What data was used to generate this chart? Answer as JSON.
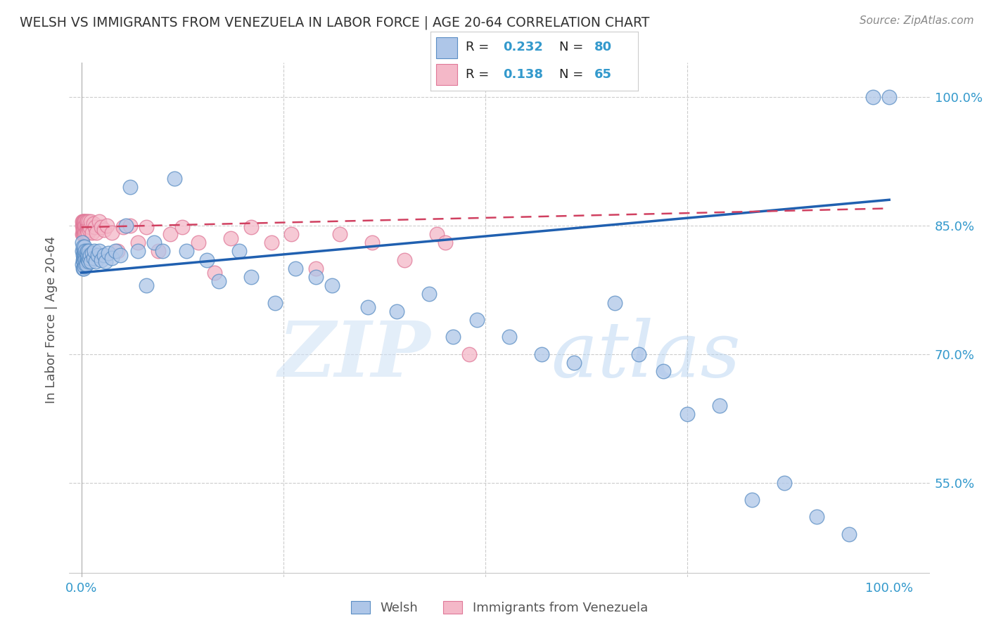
{
  "title": "WELSH VS IMMIGRANTS FROM VENEZUELA IN LABOR FORCE | AGE 20-64 CORRELATION CHART",
  "source": "Source: ZipAtlas.com",
  "ylabel": "In Labor Force | Age 20-64",
  "watermark": "ZIPatlas",
  "legend_blue_label": "Welsh",
  "legend_pink_label": "Immigrants from Venezuela",
  "blue_color": "#aec6e8",
  "pink_color": "#f4b8c8",
  "blue_edge_color": "#5b8ec4",
  "pink_edge_color": "#e07898",
  "blue_line_color": "#2060b0",
  "pink_line_color": "#d04060",
  "title_color": "#333333",
  "axis_label_color": "#555555",
  "tick_color": "#3399cc",
  "grid_color": "#cccccc",
  "background_color": "#ffffff",
  "blue_scatter_x": [
    0.001,
    0.001,
    0.001,
    0.002,
    0.002,
    0.002,
    0.002,
    0.003,
    0.003,
    0.003,
    0.003,
    0.003,
    0.004,
    0.004,
    0.004,
    0.004,
    0.005,
    0.005,
    0.005,
    0.005,
    0.006,
    0.006,
    0.006,
    0.007,
    0.007,
    0.008,
    0.008,
    0.009,
    0.009,
    0.01,
    0.011,
    0.012,
    0.013,
    0.015,
    0.016,
    0.018,
    0.02,
    0.022,
    0.025,
    0.028,
    0.03,
    0.033,
    0.038,
    0.042,
    0.048,
    0.055,
    0.06,
    0.07,
    0.08,
    0.09,
    0.1,
    0.115,
    0.13,
    0.155,
    0.17,
    0.195,
    0.21,
    0.24,
    0.265,
    0.29,
    0.31,
    0.355,
    0.39,
    0.43,
    0.46,
    0.49,
    0.53,
    0.57,
    0.61,
    0.66,
    0.69,
    0.72,
    0.75,
    0.79,
    0.83,
    0.87,
    0.91,
    0.95,
    0.98,
    1.0
  ],
  "blue_scatter_y": [
    0.82,
    0.83,
    0.805,
    0.815,
    0.8,
    0.81,
    0.825,
    0.81,
    0.8,
    0.82,
    0.815,
    0.808,
    0.812,
    0.802,
    0.818,
    0.825,
    0.805,
    0.815,
    0.81,
    0.82,
    0.808,
    0.818,
    0.805,
    0.812,
    0.82,
    0.81,
    0.815,
    0.808,
    0.82,
    0.812,
    0.815,
    0.808,
    0.818,
    0.812,
    0.82,
    0.808,
    0.815,
    0.82,
    0.81,
    0.815,
    0.808,
    0.818,
    0.812,
    0.82,
    0.815,
    0.85,
    0.895,
    0.82,
    0.78,
    0.83,
    0.82,
    0.905,
    0.82,
    0.81,
    0.785,
    0.82,
    0.79,
    0.76,
    0.8,
    0.79,
    0.78,
    0.755,
    0.75,
    0.77,
    0.72,
    0.74,
    0.72,
    0.7,
    0.69,
    0.76,
    0.7,
    0.68,
    0.63,
    0.64,
    0.53,
    0.55,
    0.51,
    0.49,
    1.0,
    1.0
  ],
  "pink_scatter_x": [
    0.001,
    0.001,
    0.001,
    0.002,
    0.002,
    0.002,
    0.002,
    0.002,
    0.003,
    0.003,
    0.003,
    0.003,
    0.003,
    0.004,
    0.004,
    0.004,
    0.004,
    0.004,
    0.005,
    0.005,
    0.005,
    0.005,
    0.006,
    0.006,
    0.006,
    0.007,
    0.007,
    0.007,
    0.008,
    0.008,
    0.009,
    0.009,
    0.01,
    0.011,
    0.012,
    0.013,
    0.015,
    0.017,
    0.019,
    0.022,
    0.025,
    0.028,
    0.032,
    0.038,
    0.045,
    0.052,
    0.06,
    0.07,
    0.08,
    0.095,
    0.11,
    0.125,
    0.145,
    0.165,
    0.185,
    0.21,
    0.235,
    0.26,
    0.29,
    0.32,
    0.36,
    0.4,
    0.44,
    0.45,
    0.48
  ],
  "pink_scatter_y": [
    0.85,
    0.84,
    0.855,
    0.845,
    0.84,
    0.85,
    0.855,
    0.845,
    0.848,
    0.84,
    0.852,
    0.845,
    0.855,
    0.842,
    0.85,
    0.845,
    0.855,
    0.84,
    0.848,
    0.855,
    0.842,
    0.85,
    0.848,
    0.855,
    0.842,
    0.85,
    0.845,
    0.855,
    0.848,
    0.842,
    0.85,
    0.855,
    0.845,
    0.848,
    0.855,
    0.842,
    0.852,
    0.848,
    0.842,
    0.855,
    0.848,
    0.845,
    0.85,
    0.842,
    0.82,
    0.848,
    0.85,
    0.83,
    0.848,
    0.82,
    0.84,
    0.848,
    0.83,
    0.795,
    0.835,
    0.848,
    0.83,
    0.84,
    0.8,
    0.84,
    0.83,
    0.81,
    0.84,
    0.83,
    0.7
  ],
  "blue_trend_x": [
    0.0,
    1.0
  ],
  "blue_trend_y": [
    0.795,
    0.88
  ],
  "pink_trend_x": [
    0.0,
    1.0
  ],
  "pink_trend_y": [
    0.848,
    0.87
  ],
  "ytick_vals": [
    0.55,
    0.7,
    0.85,
    1.0
  ],
  "ytick_labels": [
    "55.0%",
    "70.0%",
    "85.0%",
    "100.0%"
  ],
  "xtick_vals": [
    0.0,
    1.0
  ],
  "xtick_labels": [
    "0.0%",
    "100.0%"
  ],
  "ylim": [
    0.44,
    1.04
  ],
  "xlim": [
    -0.015,
    1.05
  ]
}
